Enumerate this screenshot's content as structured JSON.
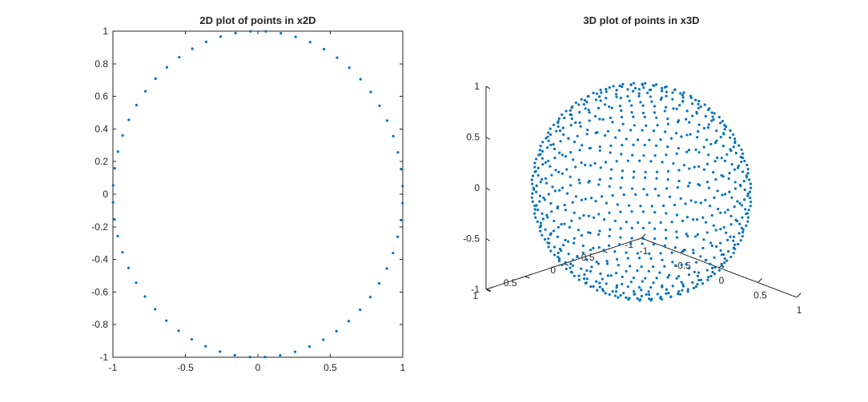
{
  "chart_data": [
    {
      "type": "scatter",
      "title": "2D plot of points in x2D",
      "xlabel": "",
      "ylabel": "",
      "xlim": [
        -1,
        1
      ],
      "ylim": [
        -1,
        1
      ],
      "xticks": [
        "-1",
        "-0.5",
        "0",
        "0.5",
        "1"
      ],
      "yticks": [
        "-1",
        "-0.8",
        "-0.6",
        "-0.4",
        "-0.2",
        "0",
        "0.2",
        "0.4",
        "0.6",
        "0.8",
        "1"
      ],
      "grid": false,
      "color": "#0072BD",
      "points_description": "approx. 60 points evenly spaced on the unit circle",
      "point_count": 60
    },
    {
      "type": "scatter3d",
      "title": "3D plot of points in x3D",
      "xlabel": "",
      "ylabel": "",
      "zlabel": "",
      "xlim": [
        -1,
        1
      ],
      "ylim": [
        -1,
        1
      ],
      "zlim": [
        -1,
        1
      ],
      "xticks": [
        "-1",
        "-0.5",
        "0",
        "0.5",
        "1"
      ],
      "yticks": [
        "-1",
        "-0.5",
        "0",
        "0.5",
        "1"
      ],
      "zticks": [
        "-1",
        "-0.5",
        "0",
        "0.5",
        "1"
      ],
      "grid": false,
      "color": "#0072BD",
      "points_description": "approx. 600 points on the unit sphere arranged in latitude rings",
      "latitude_ring_count": 20
    }
  ]
}
